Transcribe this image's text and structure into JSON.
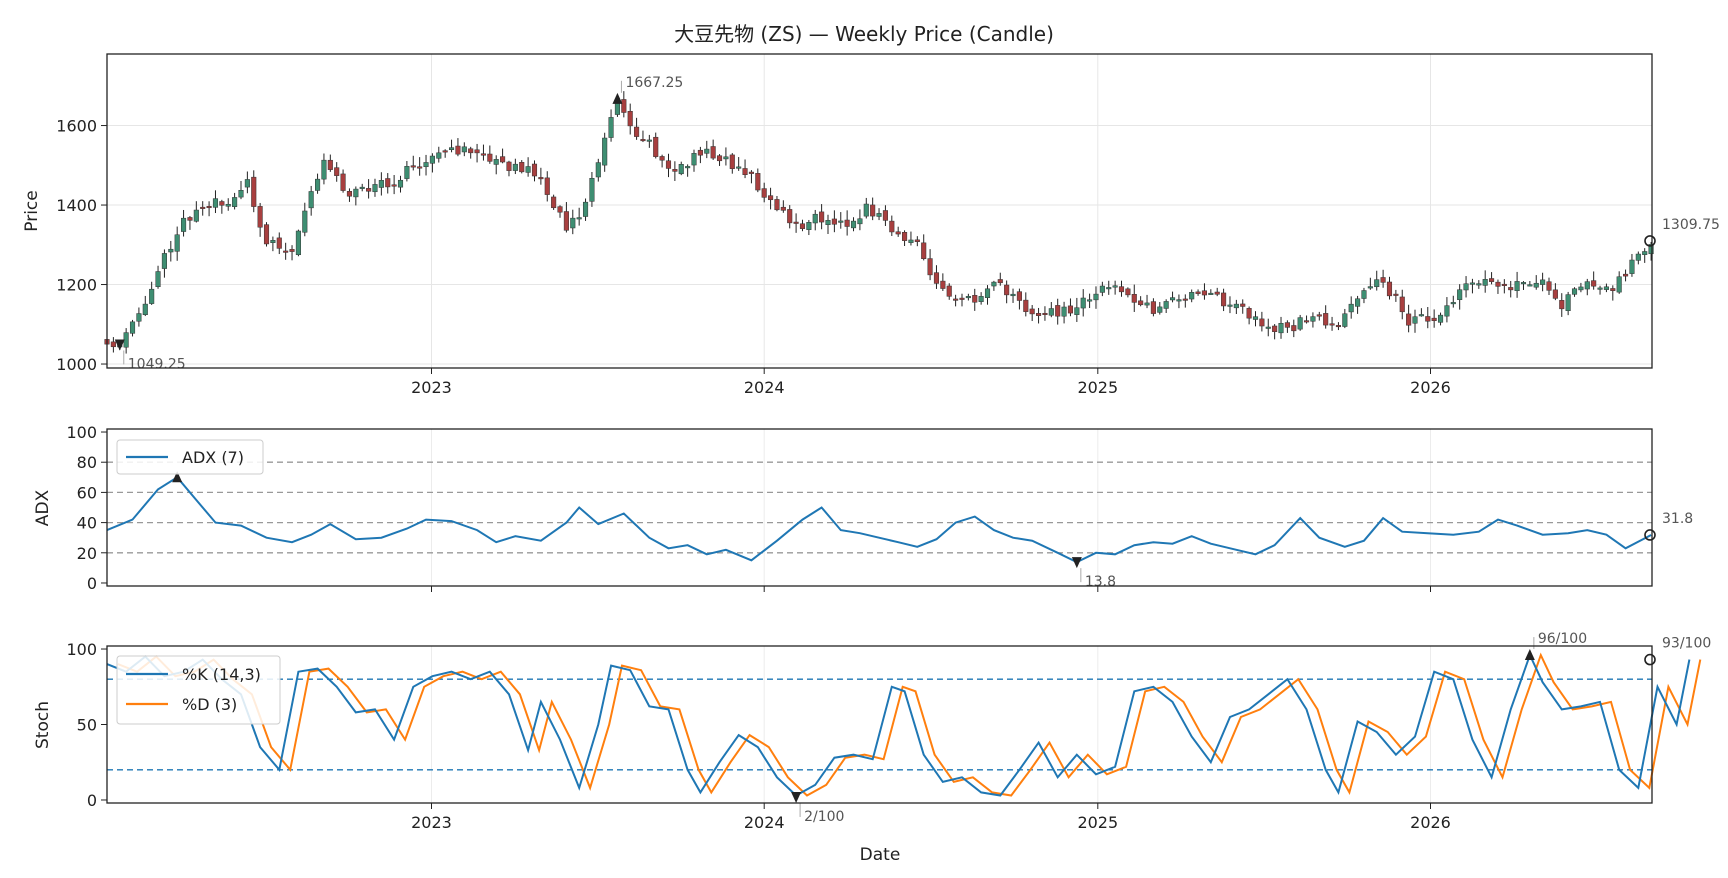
{
  "chart_data": {
    "title": "大豆先物 (ZS) — Weekly Price (Candle)",
    "type": "candlestick",
    "xlabel": "Date",
    "x_ticks": [
      "2023",
      "2024",
      "2025",
      "2026"
    ],
    "x_range": [
      "2022-01-10",
      "2026-09-01"
    ],
    "price": {
      "ylabel": "Price",
      "ylim": [
        990,
        1780
      ],
      "yticks": [
        1000,
        1200,
        1400,
        1600
      ],
      "grid": true,
      "colors": {
        "up": "#3e8e72",
        "down": "#a83f3f",
        "wick": "#222222"
      },
      "anchors": [
        [
          "2022-01-10",
          1065
        ],
        [
          "2022-01-24",
          1049
        ],
        [
          "2022-02-14",
          1120
        ],
        [
          "2022-03-14",
          1275
        ],
        [
          "2022-04-04",
          1360
        ],
        [
          "2022-05-02",
          1395
        ],
        [
          "2022-05-30",
          1420
        ],
        [
          "2022-06-13",
          1450
        ],
        [
          "2022-07-04",
          1300
        ],
        [
          "2022-08-01",
          1290
        ],
        [
          "2022-08-22",
          1430
        ],
        [
          "2022-09-05",
          1520
        ],
        [
          "2022-10-03",
          1420
        ],
        [
          "2022-10-31",
          1450
        ],
        [
          "2022-11-28",
          1470
        ],
        [
          "2022-12-26",
          1520
        ],
        [
          "2023-02-06",
          1540
        ],
        [
          "2023-03-06",
          1505
        ],
        [
          "2023-04-03",
          1500
        ],
        [
          "2023-05-01",
          1470
        ],
        [
          "2023-05-29",
          1340
        ],
        [
          "2023-06-19",
          1400
        ],
        [
          "2023-07-10",
          1560
        ],
        [
          "2023-07-24",
          1667
        ],
        [
          "2023-08-07",
          1600
        ],
        [
          "2023-08-28",
          1555
        ],
        [
          "2023-09-25",
          1480
        ],
        [
          "2023-10-23",
          1540
        ],
        [
          "2023-11-20",
          1510
        ],
        [
          "2023-12-18",
          1470
        ],
        [
          "2024-01-08",
          1410
        ],
        [
          "2024-02-05",
          1350
        ],
        [
          "2024-03-04",
          1370
        ],
        [
          "2024-04-01",
          1350
        ],
        [
          "2024-04-22",
          1395
        ],
        [
          "2024-05-20",
          1340
        ],
        [
          "2024-06-17",
          1300
        ],
        [
          "2024-07-08",
          1200
        ],
        [
          "2024-07-29",
          1150
        ],
        [
          "2024-08-26",
          1175
        ],
        [
          "2024-09-16",
          1200
        ],
        [
          "2024-10-07",
          1150
        ],
        [
          "2024-11-04",
          1130
        ],
        [
          "2024-12-02",
          1130
        ],
        [
          "2025-01-06",
          1200
        ],
        [
          "2025-02-03",
          1170
        ],
        [
          "2025-03-03",
          1140
        ],
        [
          "2025-04-07",
          1170
        ],
        [
          "2025-05-05",
          1170
        ],
        [
          "2025-06-02",
          1150
        ],
        [
          "2025-06-30",
          1100
        ],
        [
          "2025-07-28",
          1090
        ],
        [
          "2025-08-25",
          1120
        ],
        [
          "2025-09-22",
          1100
        ],
        [
          "2025-10-20",
          1180
        ],
        [
          "2025-11-10",
          1210
        ],
        [
          "2025-12-08",
          1110
        ],
        [
          "2026-01-05",
          1110
        ],
        [
          "2026-02-02",
          1180
        ],
        [
          "2026-03-02",
          1210
        ],
        [
          "2026-03-30",
          1200
        ],
        [
          "2026-04-27",
          1215
        ],
        [
          "2026-05-25",
          1150
        ],
        [
          "2026-06-22",
          1200
        ],
        [
          "2026-07-20",
          1180
        ],
        [
          "2026-08-10",
          1260
        ],
        [
          "2026-08-31",
          1309.75
        ]
      ],
      "annotations": [
        {
          "date": "2023-07-24",
          "value": 1667.25,
          "label": "1667.25",
          "marker": "max"
        },
        {
          "date": "2022-01-24",
          "value": 1049.25,
          "label": "1049.25",
          "marker": "min"
        },
        {
          "date": "2026-08-31",
          "value": 1309.75,
          "label": "1309.75",
          "marker": "last"
        }
      ]
    },
    "adx": {
      "ylabel": "ADX",
      "ylim": [
        -2,
        102
      ],
      "yticks": [
        0,
        20,
        40,
        60,
        80,
        100
      ],
      "reference_lines": [
        20,
        40,
        60,
        80
      ],
      "legend": "top-left",
      "series": [
        {
          "name": "ADX (7)",
          "color": "#1f77b4"
        }
      ],
      "anchors": [
        [
          "2022-01-10",
          35
        ],
        [
          "2022-02-07",
          42
        ],
        [
          "2022-03-07",
          62
        ],
        [
          "2022-03-28",
          70
        ],
        [
          "2022-04-18",
          55
        ],
        [
          "2022-05-09",
          40
        ],
        [
          "2022-06-06",
          38
        ],
        [
          "2022-07-04",
          30
        ],
        [
          "2022-08-01",
          27
        ],
        [
          "2022-08-22",
          32
        ],
        [
          "2022-09-12",
          39
        ],
        [
          "2022-10-10",
          29
        ],
        [
          "2022-11-07",
          30
        ],
        [
          "2022-12-05",
          36
        ],
        [
          "2022-12-26",
          42
        ],
        [
          "2023-01-23",
          41
        ],
        [
          "2023-02-20",
          35
        ],
        [
          "2023-03-13",
          27
        ],
        [
          "2023-04-03",
          31
        ],
        [
          "2023-05-01",
          28
        ],
        [
          "2023-05-29",
          40
        ],
        [
          "2023-06-12",
          50
        ],
        [
          "2023-07-03",
          39
        ],
        [
          "2023-07-31",
          46
        ],
        [
          "2023-08-28",
          30
        ],
        [
          "2023-09-18",
          23
        ],
        [
          "2023-10-09",
          25
        ],
        [
          "2023-10-30",
          19
        ],
        [
          "2023-11-20",
          22
        ],
        [
          "2023-12-18",
          15
        ],
        [
          "2024-01-15",
          28
        ],
        [
          "2024-02-12",
          42
        ],
        [
          "2024-03-04",
          50
        ],
        [
          "2024-03-25",
          35
        ],
        [
          "2024-04-15",
          33
        ],
        [
          "2024-05-06",
          30
        ],
        [
          "2024-05-27",
          27
        ],
        [
          "2024-06-17",
          24
        ],
        [
          "2024-07-08",
          29
        ],
        [
          "2024-07-29",
          40
        ],
        [
          "2024-08-19",
          44
        ],
        [
          "2024-09-09",
          35
        ],
        [
          "2024-09-30",
          30
        ],
        [
          "2024-10-21",
          28
        ],
        [
          "2024-11-18",
          20
        ],
        [
          "2024-12-09",
          13.8
        ],
        [
          "2024-12-30",
          20
        ],
        [
          "2025-01-20",
          19
        ],
        [
          "2025-02-10",
          25
        ],
        [
          "2025-03-03",
          27
        ],
        [
          "2025-03-24",
          26
        ],
        [
          "2025-04-14",
          31
        ],
        [
          "2025-05-05",
          26
        ],
        [
          "2025-06-02",
          22
        ],
        [
          "2025-06-23",
          19
        ],
        [
          "2025-07-14",
          25
        ],
        [
          "2025-08-11",
          43
        ],
        [
          "2025-09-01",
          30
        ],
        [
          "2025-09-29",
          24
        ],
        [
          "2025-10-20",
          28
        ],
        [
          "2025-11-10",
          43
        ],
        [
          "2025-12-01",
          34
        ],
        [
          "2025-12-29",
          33
        ],
        [
          "2026-01-26",
          32
        ],
        [
          "2026-02-23",
          34
        ],
        [
          "2026-03-16",
          42
        ],
        [
          "2026-04-06",
          38
        ],
        [
          "2026-05-04",
          32
        ],
        [
          "2026-06-01",
          33
        ],
        [
          "2026-06-22",
          35
        ],
        [
          "2026-07-13",
          32
        ],
        [
          "2026-08-03",
          23
        ],
        [
          "2026-08-31",
          31.8
        ]
      ],
      "annotations": [
        {
          "date": "2022-03-28",
          "value": 70,
          "label": "",
          "marker": "max"
        },
        {
          "date": "2024-12-09",
          "value": 13.8,
          "label": "13.8",
          "marker": "min"
        },
        {
          "date": "2026-08-31",
          "value": 31.8,
          "label": "31.8",
          "marker": "last"
        }
      ]
    },
    "stoch": {
      "ylabel": "Stoch",
      "ylim": [
        -2,
        102
      ],
      "yticks": [
        0,
        50,
        100
      ],
      "reference_lines": [
        20,
        80
      ],
      "legend": "top-left",
      "series": [
        {
          "name": "%K (14,3)",
          "color": "#1f77b4"
        },
        {
          "name": "%D (3)",
          "color": "#ff7f0e"
        }
      ],
      "k_anchors": [
        [
          "2022-01-10",
          90
        ],
        [
          "2022-01-31",
          85
        ],
        [
          "2022-02-21",
          95
        ],
        [
          "2022-03-14",
          82
        ],
        [
          "2022-04-04",
          85
        ],
        [
          "2022-04-25",
          93
        ],
        [
          "2022-05-16",
          80
        ],
        [
          "2022-06-06",
          70
        ],
        [
          "2022-06-27",
          35
        ],
        [
          "2022-07-18",
          20
        ],
        [
          "2022-08-08",
          85
        ],
        [
          "2022-08-29",
          87
        ],
        [
          "2022-09-19",
          75
        ],
        [
          "2022-10-10",
          58
        ],
        [
          "2022-10-31",
          60
        ],
        [
          "2022-11-21",
          40
        ],
        [
          "2022-12-12",
          75
        ],
        [
          "2023-01-02",
          82
        ],
        [
          "2023-01-23",
          85
        ],
        [
          "2023-02-13",
          80
        ],
        [
          "2023-03-06",
          85
        ],
        [
          "2023-03-27",
          70
        ],
        [
          "2023-04-17",
          33
        ],
        [
          "2023-05-01",
          65
        ],
        [
          "2023-05-22",
          40
        ],
        [
          "2023-06-12",
          8
        ],
        [
          "2023-07-03",
          50
        ],
        [
          "2023-07-17",
          89
        ],
        [
          "2023-08-07",
          86
        ],
        [
          "2023-08-28",
          62
        ],
        [
          "2023-09-18",
          60
        ],
        [
          "2023-10-09",
          20
        ],
        [
          "2023-10-23",
          5
        ],
        [
          "2023-11-13",
          25
        ],
        [
          "2023-12-04",
          43
        ],
        [
          "2023-12-25",
          35
        ],
        [
          "2024-01-15",
          15
        ],
        [
          "2024-02-05",
          3
        ],
        [
          "2024-02-26",
          10
        ],
        [
          "2024-03-18",
          28
        ],
        [
          "2024-04-08",
          30
        ],
        [
          "2024-04-29",
          27
        ],
        [
          "2024-05-20",
          75
        ],
        [
          "2024-06-03",
          72
        ],
        [
          "2024-06-24",
          30
        ],
        [
          "2024-07-15",
          12
        ],
        [
          "2024-08-05",
          15
        ],
        [
          "2024-08-26",
          5
        ],
        [
          "2024-09-16",
          3
        ],
        [
          "2024-10-07",
          20
        ],
        [
          "2024-10-28",
          38
        ],
        [
          "2024-11-18",
          15
        ],
        [
          "2024-12-09",
          30
        ],
        [
          "2024-12-30",
          17
        ],
        [
          "2025-01-20",
          22
        ],
        [
          "2025-02-10",
          72
        ],
        [
          "2025-03-03",
          75
        ],
        [
          "2025-03-24",
          65
        ],
        [
          "2025-04-14",
          42
        ],
        [
          "2025-05-05",
          25
        ],
        [
          "2025-05-26",
          55
        ],
        [
          "2025-06-16",
          60
        ],
        [
          "2025-07-07",
          70
        ],
        [
          "2025-07-28",
          80
        ],
        [
          "2025-08-18",
          60
        ],
        [
          "2025-09-08",
          20
        ],
        [
          "2025-09-22",
          5
        ],
        [
          "2025-10-13",
          52
        ],
        [
          "2025-11-03",
          45
        ],
        [
          "2025-11-24",
          30
        ],
        [
          "2025-12-15",
          42
        ],
        [
          "2026-01-05",
          85
        ],
        [
          "2026-01-26",
          80
        ],
        [
          "2026-02-16",
          40
        ],
        [
          "2026-03-09",
          15
        ],
        [
          "2026-03-30",
          60
        ],
        [
          "2026-04-20",
          96
        ],
        [
          "2026-05-04",
          78
        ],
        [
          "2026-05-25",
          60
        ],
        [
          "2026-06-15",
          62
        ],
        [
          "2026-07-06",
          65
        ],
        [
          "2026-07-27",
          20
        ],
        [
          "2026-08-17",
          8
        ],
        [
          "2026-09-07",
          75
        ],
        [
          "2026-09-28",
          50
        ],
        [
          "2026-10-12",
          93
        ]
      ],
      "annotations": [
        {
          "date": "2026-04-20",
          "value": 96,
          "label": "96/100",
          "marker": "max"
        },
        {
          "date": "2024-02-05",
          "value": 2,
          "label": "2/100",
          "marker": "min"
        },
        {
          "date": "2026-10-12",
          "value": 93,
          "label": "93/100",
          "marker": "last"
        }
      ]
    }
  }
}
